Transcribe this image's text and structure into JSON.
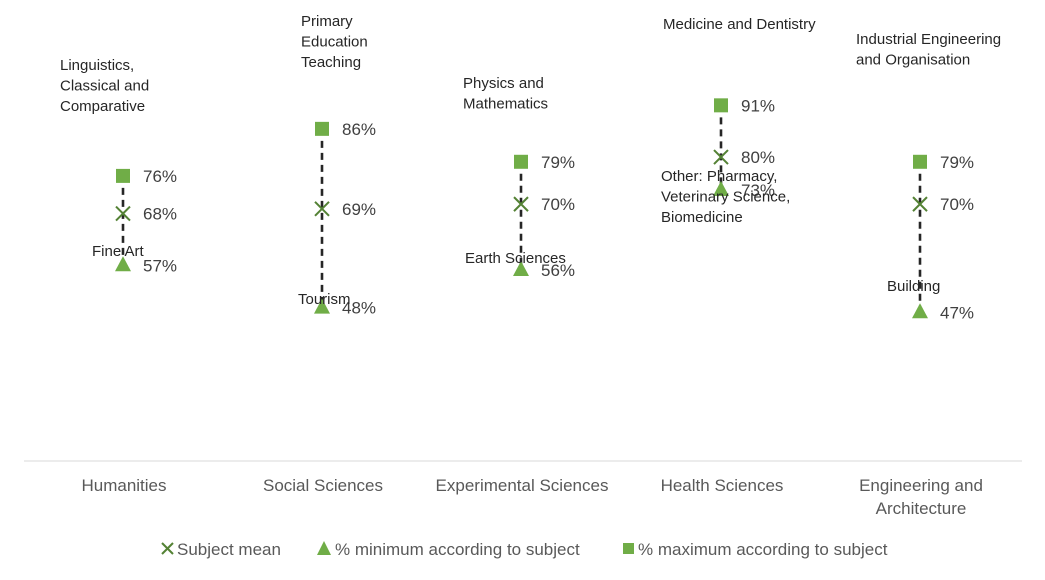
{
  "chart_data": {
    "type": "range-dot",
    "categories": [
      "Humanities",
      "Social Sciences",
      "Experimental Sciences",
      "Health Sciences",
      "Engineering and Architecture"
    ],
    "series": [
      {
        "name": "% maximum according to subject",
        "values": [
          76,
          86,
          79,
          91,
          79
        ],
        "marker": "square",
        "color": "#70AD47"
      },
      {
        "name": "Subject mean",
        "values": [
          68,
          69,
          70,
          80,
          70
        ],
        "marker": "x",
        "color": "#548235"
      },
      {
        "name": "% minimum according to subject",
        "values": [
          57,
          48,
          56,
          73,
          47
        ],
        "marker": "triangle",
        "color": "#70AD47"
      }
    ],
    "max_labels": [
      "Linguistics, Classical and Comparative",
      "Primary Education Teaching",
      "Physics and Mathematics",
      "Medicine and Dentistry",
      "Industrial Engineering and Organisation"
    ],
    "min_labels": [
      "Fine Art",
      "Tourism",
      "Earth Sciences",
      "Other: Pharmacy, Veterinary Science, Biomedicine",
      "Building"
    ],
    "value_labels": {
      "max": [
        "76%",
        "86%",
        "79%",
        "91%",
        "79%"
      ],
      "mean": [
        "68%",
        "69%",
        "70%",
        "80%",
        "70%"
      ],
      "min": [
        "57%",
        "48%",
        "56%",
        "73%",
        "47%"
      ]
    },
    "grid": false,
    "legend_position": "bottom",
    "connector": "dashed",
    "ylim": [
      0,
      100
    ]
  }
}
